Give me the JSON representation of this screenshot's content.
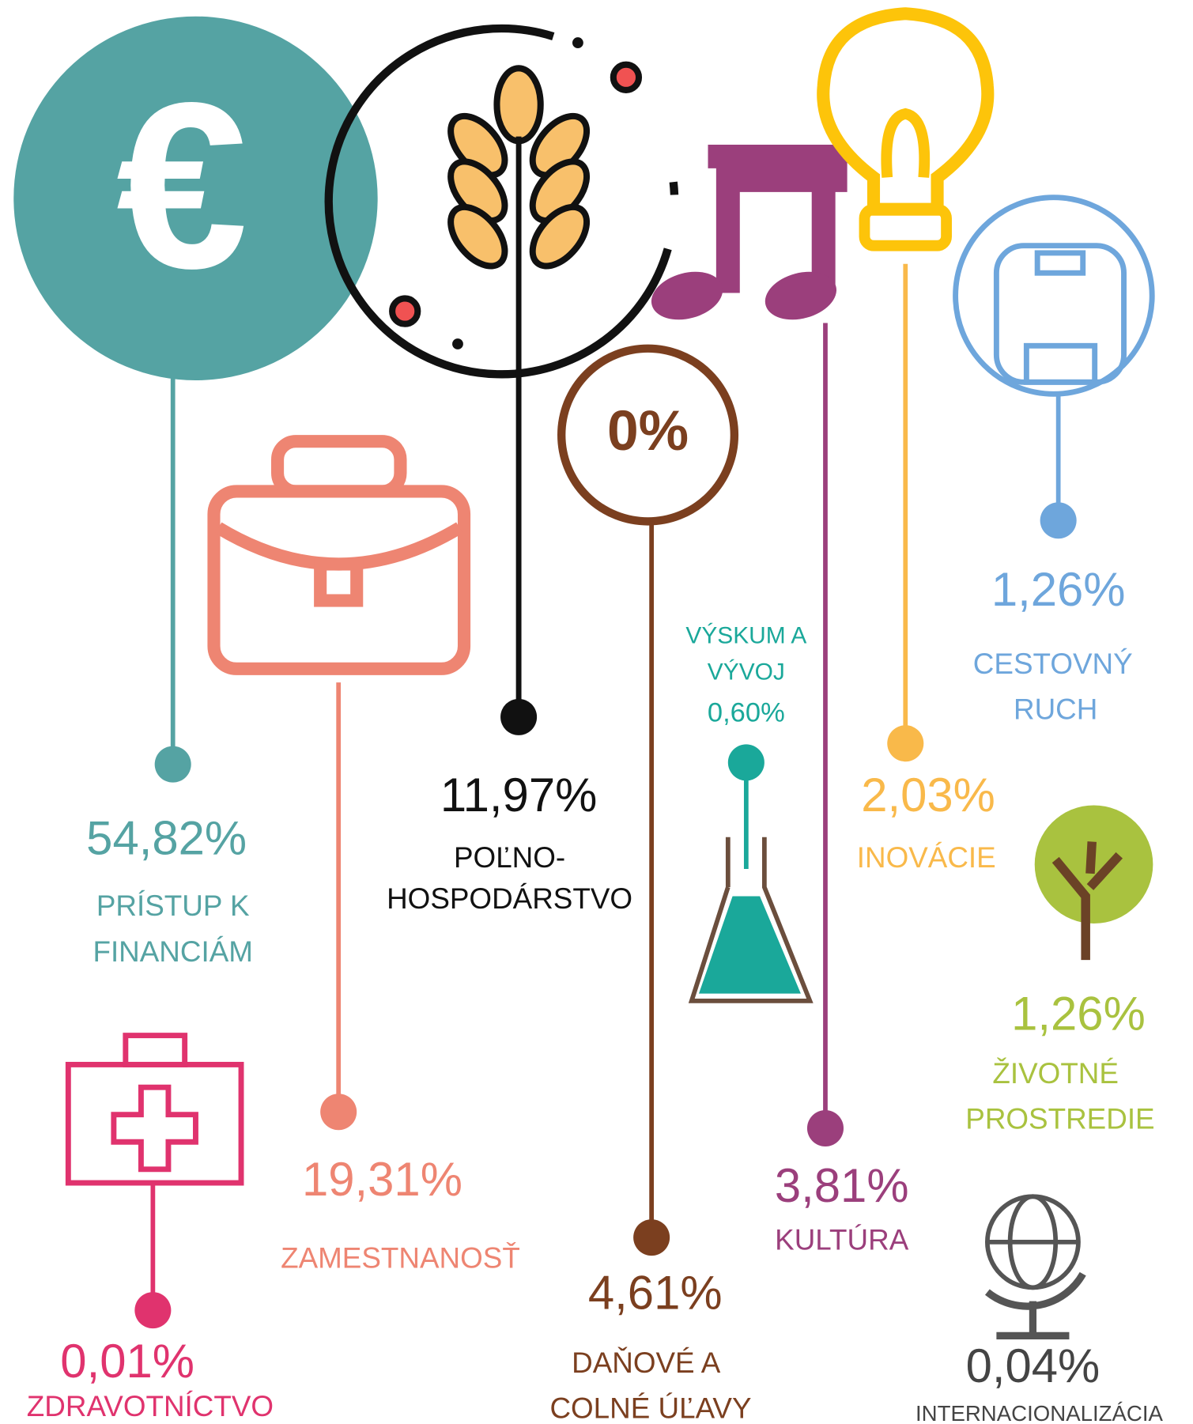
{
  "icon_text": "0%",
  "items": [
    {
      "value": "54,82%",
      "label": [
        "PRÍSTUP K",
        "FINANCIÁM"
      ]
    },
    {
      "value": "11,97%",
      "label": [
        "POĽNO-",
        "HOSPODÁRSTVO"
      ]
    },
    {
      "value": "19,31%",
      "label": [
        "ZAMESTNANOSŤ"
      ]
    },
    {
      "value": "4,61%",
      "label": [
        "DAŇOVÉ A",
        "COLNÉ ÚĽAVY"
      ]
    },
    {
      "value": "0,60%",
      "label": [
        "VÝSKUM A",
        "VÝVOJ"
      ]
    },
    {
      "value": "3,81%",
      "label": [
        "KULTÚRA"
      ]
    },
    {
      "value": "2,03%",
      "label": [
        "INOVÁCIE"
      ]
    },
    {
      "value": "1,26%",
      "label": [
        "CESTOVNÝ",
        "RUCH"
      ]
    },
    {
      "value": "1,26%",
      "label": [
        "ŽIVOTNÉ",
        "PROSTREDIE"
      ]
    },
    {
      "value": "0,01%",
      "label": [
        "ZDRAVOTNÍCTVO"
      ]
    },
    {
      "value": "0,04%",
      "label": [
        "INTERNACIONALIZÁCIA"
      ]
    }
  ]
}
